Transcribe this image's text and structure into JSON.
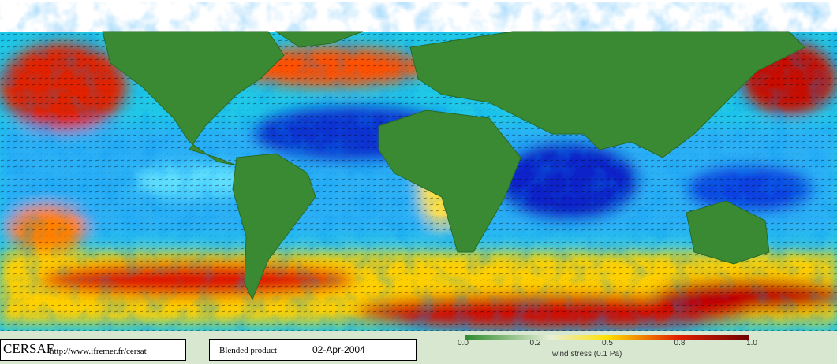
{
  "footer": {
    "logo": "CERSAF",
    "url": "http://www.ifremer.fr/cersat",
    "product": "Blended product",
    "date": "02-Apr-2004"
  },
  "colorbar": {
    "tick_labels": [
      "0.0",
      "0.2",
      "0.5",
      "0.8",
      "1.0"
    ],
    "label": "wind stress (0.1 Pa)"
  }
}
